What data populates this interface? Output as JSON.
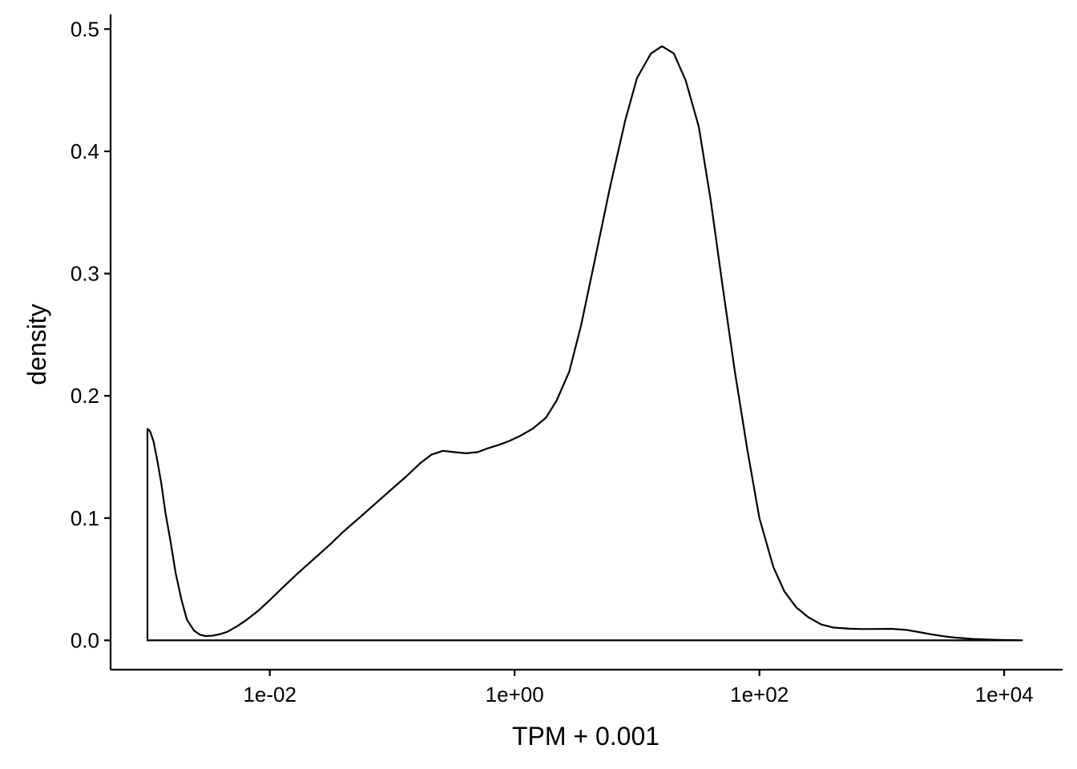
{
  "chart_data": {
    "type": "area",
    "xlabel": "TPM + 0.001",
    "ylabel": "density",
    "x_scale": "log10",
    "xlim": [
      0.0005,
      30000
    ],
    "ylim": [
      -0.024,
      0.512
    ],
    "grid": false,
    "legend": "none",
    "x_ticks": [
      {
        "value": 0.01,
        "label": "1e-02"
      },
      {
        "value": 1,
        "label": "1e+00"
      },
      {
        "value": 100,
        "label": "1e+02"
      },
      {
        "value": 10000,
        "label": "1e+04"
      }
    ],
    "y_ticks": [
      {
        "value": 0.0,
        "label": "0.0"
      },
      {
        "value": 0.1,
        "label": "0.1"
      },
      {
        "value": 0.2,
        "label": "0.2"
      },
      {
        "value": 0.3,
        "label": "0.3"
      },
      {
        "value": 0.4,
        "label": "0.4"
      },
      {
        "value": 0.5,
        "label": "0.5"
      }
    ],
    "series": [
      {
        "x": [
          0.001,
          0.00105,
          0.00112,
          0.0012,
          0.0013,
          0.0014,
          0.00155,
          0.0017,
          0.0019,
          0.0021,
          0.0024,
          0.0027,
          0.003,
          0.0034,
          0.0039,
          0.0045,
          0.0055,
          0.0065,
          0.008,
          0.01,
          0.013,
          0.017,
          0.022,
          0.03,
          0.04,
          0.055,
          0.075,
          0.1,
          0.13,
          0.17,
          0.21,
          0.26,
          0.32,
          0.4,
          0.5,
          0.6,
          0.75,
          0.9,
          1.1,
          1.4,
          1.8,
          2.2,
          2.8,
          3.5,
          4.5,
          6,
          8,
          10,
          13,
          16,
          20,
          25,
          32,
          40,
          50,
          63,
          80,
          100,
          130,
          160,
          200,
          250,
          320,
          400,
          550,
          700,
          900,
          1200,
          1600,
          2000,
          2500,
          3200,
          4000,
          5500,
          7500,
          10000,
          14000
        ],
        "y": [
          0.173,
          0.171,
          0.163,
          0.148,
          0.128,
          0.105,
          0.08,
          0.055,
          0.033,
          0.017,
          0.008,
          0.0045,
          0.0035,
          0.0038,
          0.005,
          0.007,
          0.012,
          0.017,
          0.024,
          0.033,
          0.044,
          0.055,
          0.065,
          0.077,
          0.089,
          0.101,
          0.113,
          0.124,
          0.134,
          0.145,
          0.152,
          0.155,
          0.154,
          0.153,
          0.154,
          0.157,
          0.16,
          0.163,
          0.167,
          0.173,
          0.182,
          0.196,
          0.22,
          0.258,
          0.31,
          0.37,
          0.425,
          0.46,
          0.48,
          0.486,
          0.48,
          0.458,
          0.42,
          0.36,
          0.29,
          0.22,
          0.155,
          0.1,
          0.06,
          0.04,
          0.027,
          0.019,
          0.013,
          0.0105,
          0.0095,
          0.0092,
          0.0093,
          0.0094,
          0.0085,
          0.0068,
          0.005,
          0.0033,
          0.0022,
          0.0012,
          0.0006,
          0.0003,
          0.0
        ]
      }
    ]
  }
}
